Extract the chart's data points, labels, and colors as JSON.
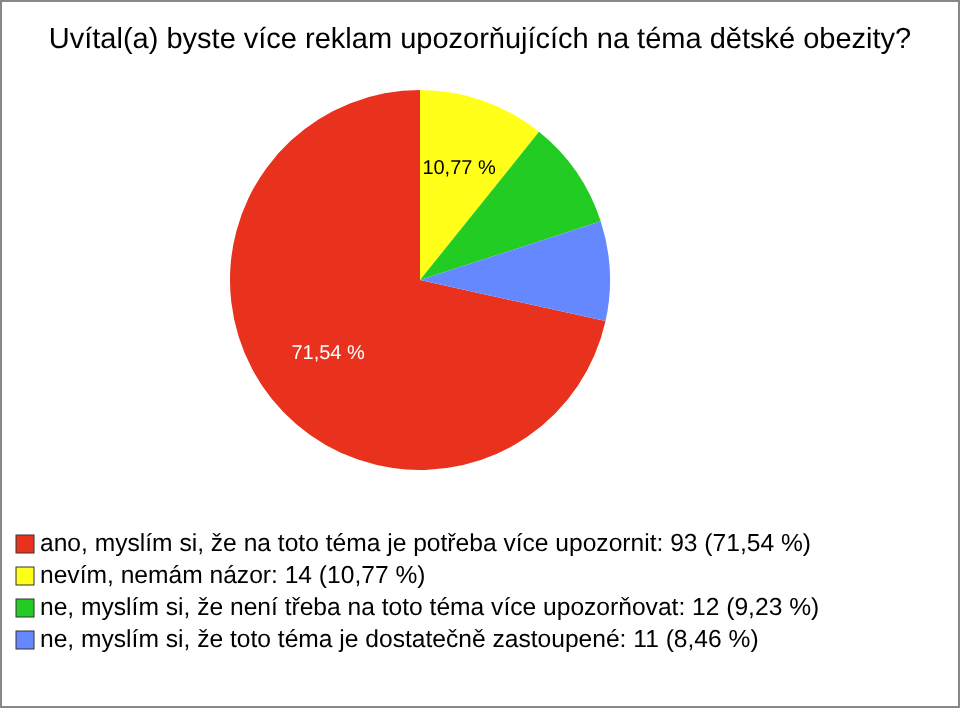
{
  "chart_data": {
    "type": "pie",
    "title": "Uvítal(a) byste více reklam upozorňujících na téma dětské obezity?",
    "categories": [
      "ano, myslím si, že na toto téma je potřeba více upozornit: 93 (71,54 %)",
      "nevím, nemám názor: 14 (10,77 %)",
      "ne, myslím si, že není třeba na toto téma více upozorňovat: 12 (9,23 %)",
      "ne, myslím si, že toto téma je dostatečně zastoupené: 11 (8,46 %)"
    ],
    "values": [
      71.54,
      10.77,
      9.23,
      8.46
    ],
    "colors": [
      "#e8321e",
      "#ffff1a",
      "#22cc22",
      "#6688ff"
    ],
    "value_labels": [
      "71,54 %",
      "10,77 %",
      null,
      null
    ],
    "legend": "bottom"
  }
}
